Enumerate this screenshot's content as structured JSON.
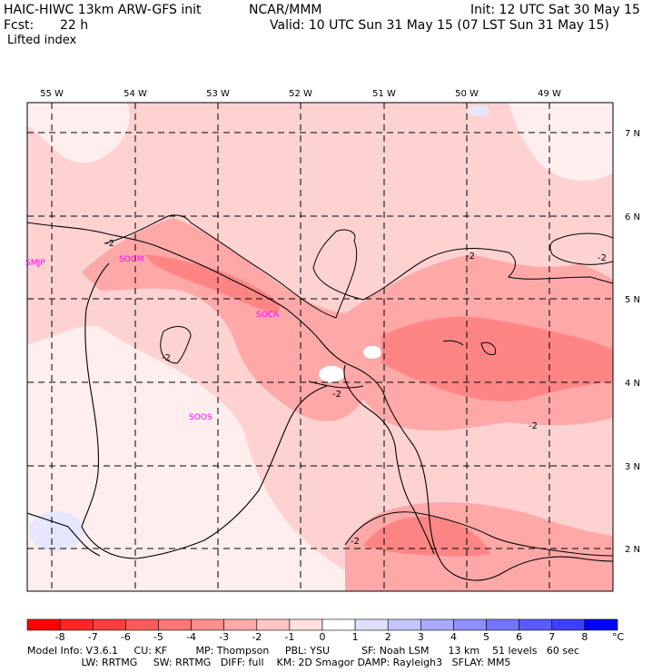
{
  "header": {
    "model": "HAIC-HIWC 13km ARW-GFS init",
    "org": "NCAR/MMM",
    "init": "Init: 12 UTC Sat 30 May 15",
    "fcst_label": "Fcst:",
    "fcst_value": "22 h",
    "valid": "Valid: 10 UTC Sun 31 May 15 (07 LST Sun 31 May 15)",
    "field": "Lifted index"
  },
  "map": {
    "lon_labels": [
      "55 W",
      "54 W",
      "53 W",
      "52 W",
      "51 W",
      "50 W",
      "49 W"
    ],
    "lat_labels": [
      "7 N",
      "6 N",
      "5 N",
      "4 N",
      "3 N",
      "2 N"
    ],
    "stations": [
      "SMJP",
      "SOGM",
      "SOCA",
      "SOOS"
    ],
    "contour_label": "-2",
    "colors": {
      "coast": "#000000",
      "grid": "#000000",
      "station": "#ff00ff",
      "light": "#ffd2d2",
      "medium": "#ffa8a8",
      "dark": "#ff8585",
      "neutral": "#ffeeee",
      "blue": "#e6e6ff"
    }
  },
  "colorbar": {
    "ticks": [
      "-8",
      "-7",
      "-6",
      "-5",
      "-4",
      "-3",
      "-2",
      "-1",
      "0",
      "1",
      "2",
      "3",
      "4",
      "5",
      "6",
      "7",
      "8"
    ],
    "unit": "°C",
    "colors": [
      "#ff0000",
      "#ff2525",
      "#ff3f3f",
      "#ff5a5a",
      "#ff7474",
      "#ff8f8f",
      "#ffa9a9",
      "#ffc4c4",
      "#ffdfdf",
      "#ffffff",
      "#dfdfff",
      "#c4c4ff",
      "#a9a9ff",
      "#8f8fff",
      "#7474ff",
      "#5a5aff",
      "#3f3fff",
      "#0000ff"
    ]
  },
  "footer": {
    "line1": "Model Info: V3.6.1     CU: KF         MP: Thompson     PBL: YSU          SF: Noah LSM      13 km    51 levels   60 sec",
    "line2": "                 LW: RRTMG     SW: RRTMG   DIFF: full    KM: 2D Smagor DAMP: Rayleigh3   SFLAY: MM5"
  }
}
